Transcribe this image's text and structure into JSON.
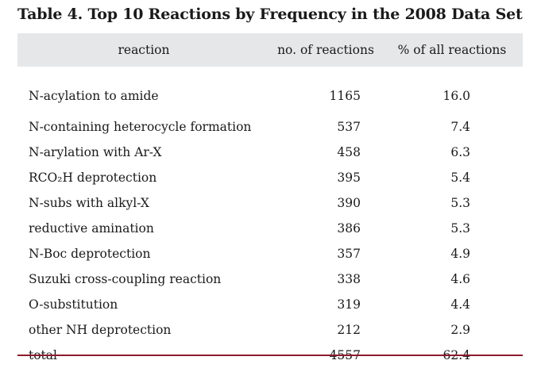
{
  "caption": "Table 4.  Top 10 Reactions by Frequency in the 2008 Data Set",
  "table": {
    "columns": [
      "reaction",
      "no. of reactions",
      "% of all reactions"
    ],
    "rows": [
      {
        "reaction": "N-acylation to amide",
        "count": "1165",
        "percent": "16.0"
      },
      {
        "reaction": "N-containing heterocycle formation",
        "count": "537",
        "percent": "7.4"
      },
      {
        "reaction": "N-arylation with Ar-X",
        "count": "458",
        "percent": "6.3"
      },
      {
        "reaction": "RCO₂H deprotection",
        "count": "395",
        "percent": "5.4"
      },
      {
        "reaction": "N-subs with alkyl-X",
        "count": "390",
        "percent": "5.3"
      },
      {
        "reaction": "reductive amination",
        "count": "386",
        "percent": "5.3"
      },
      {
        "reaction": "N-Boc deprotection",
        "count": "357",
        "percent": "4.9"
      },
      {
        "reaction": "Suzuki cross-coupling reaction",
        "count": "338",
        "percent": "4.6"
      },
      {
        "reaction": "O-substitution",
        "count": "319",
        "percent": "4.4"
      },
      {
        "reaction": "other NH deprotection",
        "count": "212",
        "percent": "2.9"
      },
      {
        "reaction": "total",
        "count": "4557",
        "percent": "62.4"
      }
    ]
  },
  "colors": {
    "header_background": "#e6e7e9",
    "bottom_rule": "#8a1c2b"
  }
}
